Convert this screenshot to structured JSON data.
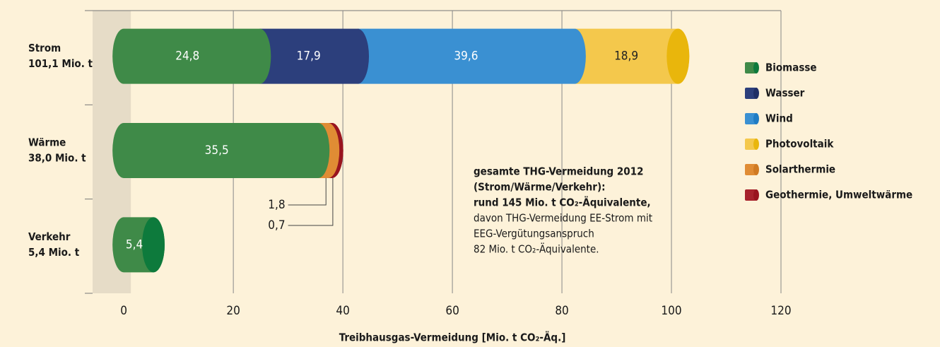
{
  "chart_data": {
    "type": "stacked_bar_horizontal",
    "categories": [
      "Strom",
      "Wärme",
      "Verkehr"
    ],
    "category_totals": [
      "101,1 Mio. t",
      "38,0 Mio. t",
      "5,4 Mio. t"
    ],
    "series": [
      {
        "name": "Biomasse",
        "color": "#3f8a48",
        "end_color": "#0d7a3c",
        "values": [
          24.8,
          35.5,
          5.4
        ],
        "value_labels": [
          "24,8",
          "35,5",
          "5,4"
        ]
      },
      {
        "name": "Wasser",
        "color": "#2c3f7c",
        "end_color": "#1f2f66",
        "values": [
          17.9,
          null,
          null
        ],
        "value_labels": [
          "17,9",
          null,
          null
        ]
      },
      {
        "name": "Wind",
        "color": "#3a90d2",
        "end_color": "#1f7cc4",
        "values": [
          39.6,
          null,
          null
        ],
        "value_labels": [
          "39,6",
          null,
          null
        ]
      },
      {
        "name": "Photovoltaik",
        "color": "#f4c84c",
        "end_color": "#e9b60c",
        "values": [
          18.9,
          null,
          null
        ],
        "value_labels": [
          "18,9",
          null,
          null
        ]
      },
      {
        "name": "Solarthermie",
        "color": "#e08c34",
        "end_color": "#d07a22",
        "values": [
          null,
          1.8,
          null
        ],
        "value_labels": [
          null,
          "1,8",
          null
        ]
      },
      {
        "name": "Geothermie, Umweltwärme",
        "color": "#a7222c",
        "end_color": "#99141f",
        "values": [
          null,
          0.7,
          null
        ],
        "value_labels": [
          null,
          "0,7",
          null
        ]
      }
    ],
    "xlim": [
      -5.7,
      120
    ],
    "xticks": [
      0,
      20,
      40,
      60,
      80,
      100,
      120
    ],
    "x_label": "Treibhausgas-Vermeidung [Mio. t CO₂-Äq.]",
    "annotation_bold": [
      "gesamte THG-Vermeidung 2012",
      "(Strom/Wärme/Verkehr):",
      "rund 145 Mio. t CO₂-Äquivalente,"
    ],
    "annotation": [
      "davon THG-Vermeidung EE-Strom mit",
      "EEG-Vergütungsanspruch",
      "82 Mio. t CO₂-Äquivalente."
    ],
    "grid": true,
    "legend": "right"
  }
}
